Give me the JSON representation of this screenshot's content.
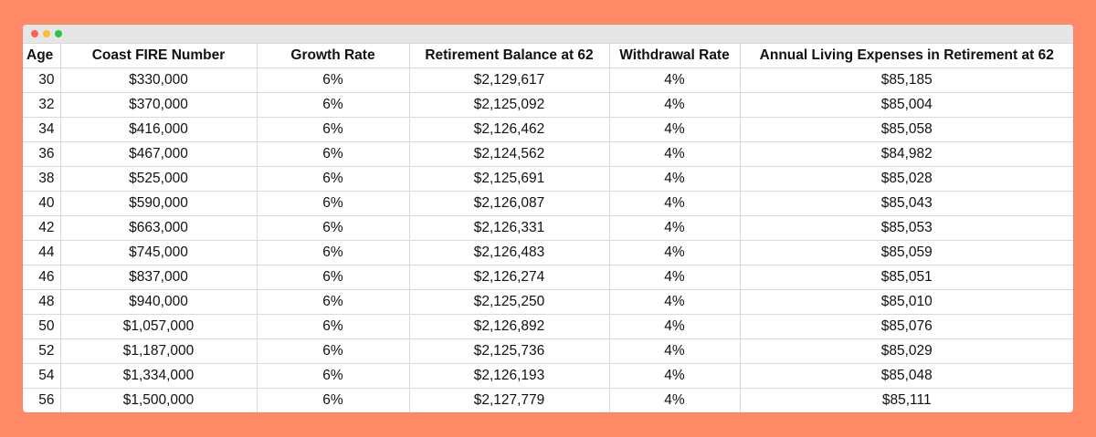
{
  "window": {
    "controls": [
      "close",
      "minimize",
      "zoom"
    ]
  },
  "table": {
    "headers": {
      "age": "Age",
      "coast_fire": "Coast FIRE Number",
      "growth_rate": "Growth Rate",
      "balance": "Retirement Balance at 62",
      "withdrawal_rate": "Withdrawal Rate",
      "expenses": "Annual Living Expenses in Retirement at 62"
    },
    "rows": [
      {
        "age": "30",
        "coast_fire": "$330,000",
        "growth_rate": "6%",
        "balance": "$2,129,617",
        "withdrawal_rate": "4%",
        "expenses": "$85,185"
      },
      {
        "age": "32",
        "coast_fire": "$370,000",
        "growth_rate": "6%",
        "balance": "$2,125,092",
        "withdrawal_rate": "4%",
        "expenses": "$85,004"
      },
      {
        "age": "34",
        "coast_fire": "$416,000",
        "growth_rate": "6%",
        "balance": "$2,126,462",
        "withdrawal_rate": "4%",
        "expenses": "$85,058"
      },
      {
        "age": "36",
        "coast_fire": "$467,000",
        "growth_rate": "6%",
        "balance": "$2,124,562",
        "withdrawal_rate": "4%",
        "expenses": "$84,982"
      },
      {
        "age": "38",
        "coast_fire": "$525,000",
        "growth_rate": "6%",
        "balance": "$2,125,691",
        "withdrawal_rate": "4%",
        "expenses": "$85,028"
      },
      {
        "age": "40",
        "coast_fire": "$590,000",
        "growth_rate": "6%",
        "balance": "$2,126,087",
        "withdrawal_rate": "4%",
        "expenses": "$85,043"
      },
      {
        "age": "42",
        "coast_fire": "$663,000",
        "growth_rate": "6%",
        "balance": "$2,126,331",
        "withdrawal_rate": "4%",
        "expenses": "$85,053"
      },
      {
        "age": "44",
        "coast_fire": "$745,000",
        "growth_rate": "6%",
        "balance": "$2,126,483",
        "withdrawal_rate": "4%",
        "expenses": "$85,059"
      },
      {
        "age": "46",
        "coast_fire": "$837,000",
        "growth_rate": "6%",
        "balance": "$2,126,274",
        "withdrawal_rate": "4%",
        "expenses": "$85,051"
      },
      {
        "age": "48",
        "coast_fire": "$940,000",
        "growth_rate": "6%",
        "balance": "$2,125,250",
        "withdrawal_rate": "4%",
        "expenses": "$85,010"
      },
      {
        "age": "50",
        "coast_fire": "$1,057,000",
        "growth_rate": "6%",
        "balance": "$2,126,892",
        "withdrawal_rate": "4%",
        "expenses": "$85,076"
      },
      {
        "age": "52",
        "coast_fire": "$1,187,000",
        "growth_rate": "6%",
        "balance": "$2,125,736",
        "withdrawal_rate": "4%",
        "expenses": "$85,029"
      },
      {
        "age": "54",
        "coast_fire": "$1,334,000",
        "growth_rate": "6%",
        "balance": "$2,126,193",
        "withdrawal_rate": "4%",
        "expenses": "$85,048"
      },
      {
        "age": "56",
        "coast_fire": "$1,500,000",
        "growth_rate": "6%",
        "balance": "$2,127,779",
        "withdrawal_rate": "4%",
        "expenses": "$85,111"
      }
    ]
  }
}
